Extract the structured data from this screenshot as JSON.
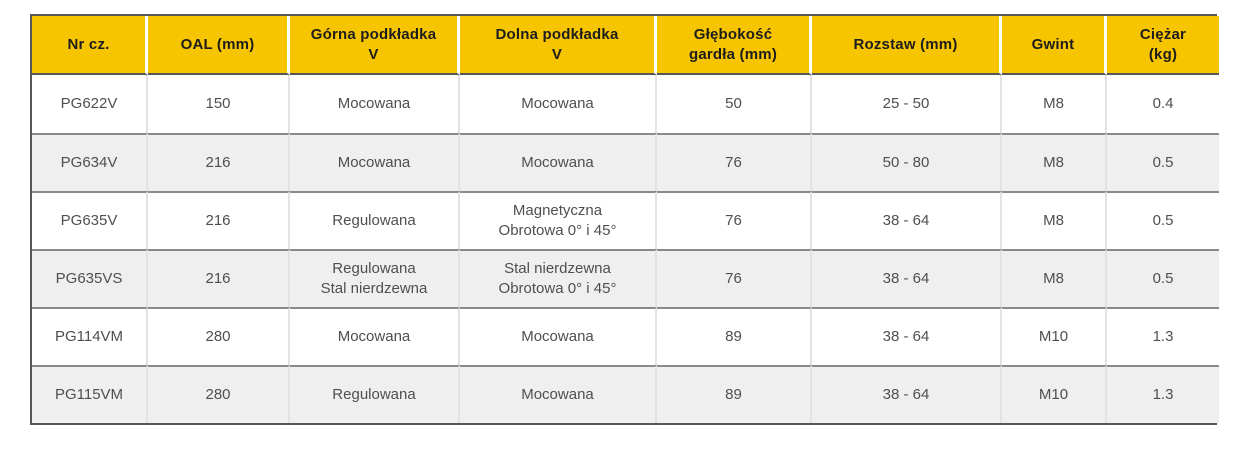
{
  "colors": {
    "header_bg": "#F7C500",
    "header_text": "#1D1D1B",
    "body_text": "#4F4F4F",
    "row_alt_bg": "#EFEFEF",
    "outer_border": "#55565A",
    "row_divider": "#8A8A8A",
    "col_divider": "#E2E2E2",
    "header_divider": "#FFFFFF"
  },
  "table": {
    "columns": [
      {
        "label": "Nr cz."
      },
      {
        "label": "OAL (mm)"
      },
      {
        "label": "Górna podkładka\nV"
      },
      {
        "label": "Dolna podkładka\nV"
      },
      {
        "label": "Głębokość\ngardła (mm)"
      },
      {
        "label": "Rozstaw (mm)"
      },
      {
        "label": "Gwint"
      },
      {
        "label": "Ciężar\n(kg)"
      }
    ],
    "rows": [
      {
        "cells": [
          "PG622V",
          "150",
          "Mocowana",
          "Mocowana",
          "50",
          "25 - 50",
          "M8",
          "0.4"
        ]
      },
      {
        "cells": [
          "PG634V",
          "216",
          "Mocowana",
          "Mocowana",
          "76",
          "50 - 80",
          "M8",
          "0.5"
        ]
      },
      {
        "cells": [
          "PG635V",
          "216",
          "Regulowana",
          "Magnetyczna\nObrotowa 0° i 45°",
          "76",
          "38 - 64",
          "M8",
          "0.5"
        ]
      },
      {
        "cells": [
          "PG635VS",
          "216",
          "Regulowana\nStal nierdzewna",
          "Stal nierdzewna\nObrotowa 0° i 45°",
          "76",
          "38 - 64",
          "M8",
          "0.5"
        ]
      },
      {
        "cells": [
          "PG114VM",
          "280",
          "Mocowana",
          "Mocowana",
          "89",
          "38 - 64",
          "M10",
          "1.3"
        ]
      },
      {
        "cells": [
          "PG115VM",
          "280",
          "Regulowana",
          "Mocowana",
          "89",
          "38 - 64",
          "M10",
          "1.3"
        ]
      }
    ]
  }
}
